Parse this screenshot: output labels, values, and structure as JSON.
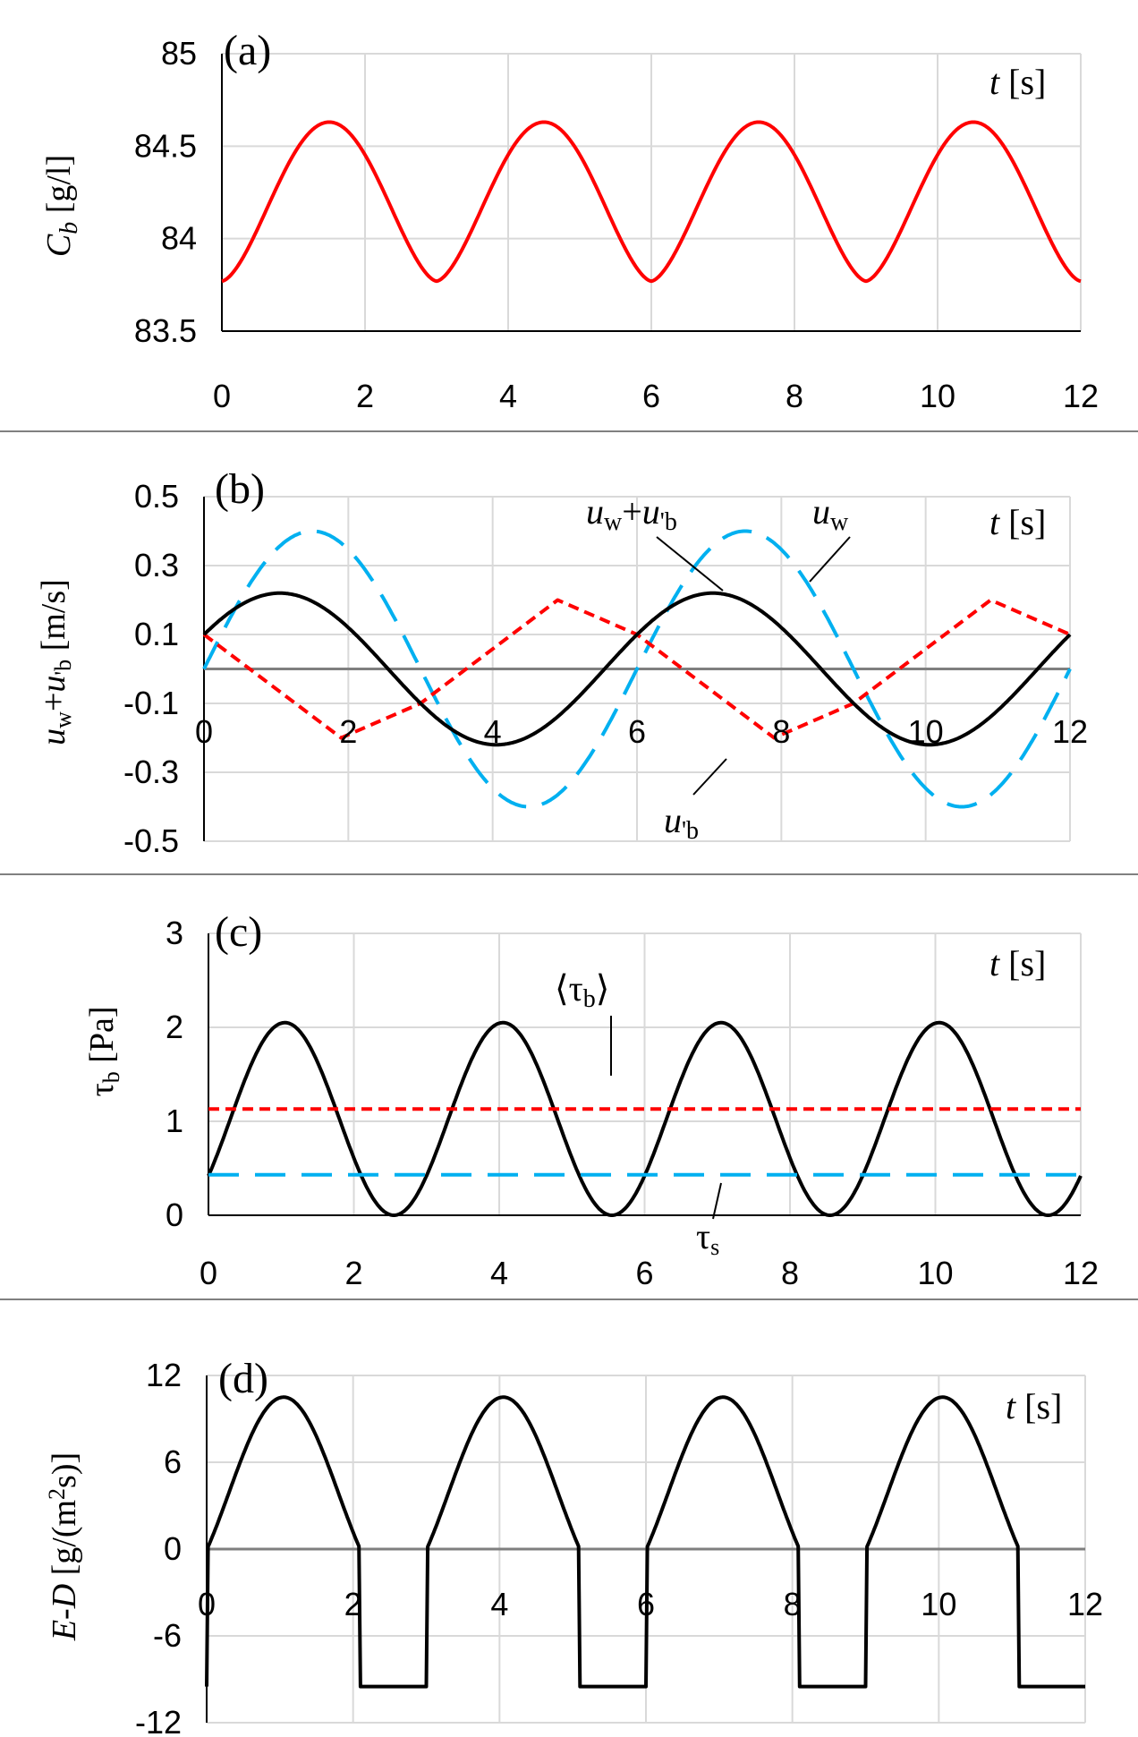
{
  "chart_data": [
    {
      "type": "line",
      "panel": "(a)",
      "t_label": "t [s]",
      "ylabel_parts": [
        "C",
        "b",
        " [g/l]"
      ],
      "x": [
        0,
        1.5,
        3,
        4.5,
        6,
        7.5,
        9,
        10.5,
        12
      ],
      "xlim": [
        0,
        12
      ],
      "xticks": [
        "0",
        "2",
        "4",
        "6",
        "8",
        "10",
        "12"
      ],
      "ylim": [
        83.5,
        85
      ],
      "yticks": [
        "83.5",
        "84",
        "84.5",
        "85"
      ],
      "series": [
        {
          "name": "C_b",
          "color": "#ff0000",
          "style": "solid",
          "values": [
            83.77,
            84.63,
            83.77,
            84.63,
            83.77,
            84.63,
            83.77,
            84.63,
            83.77
          ]
        }
      ]
    },
    {
      "type": "line",
      "panel": "(b)",
      "t_label": "t [s]",
      "ylabel": "uw+u'b [m/s]",
      "xlim": [
        0,
        12
      ],
      "xticks": [
        "0",
        "2",
        "4",
        "6",
        "8",
        "10",
        "12"
      ],
      "ylim": [
        -0.5,
        0.5
      ],
      "yticks": [
        "-0.5",
        "-0.3",
        "-0.1",
        "0.1",
        "0.3",
        "0.5"
      ],
      "series": [
        {
          "name": "uw",
          "color": "#00b0f0",
          "style": "dashed",
          "model": "0.4*sin(2*pi*t/6)",
          "amplitude": 0.4,
          "period": 6
        },
        {
          "name": "u'b",
          "color": "#ff0000",
          "style": "dotted",
          "x": [
            0,
            1.9,
            3,
            4.9,
            6,
            7.9,
            9,
            10.9,
            12
          ],
          "values": [
            0.1,
            -0.2,
            -0.1,
            0.2,
            0.1,
            -0.2,
            -0.1,
            0.2,
            0.1
          ]
        },
        {
          "name": "uw+u'b",
          "color": "#000000",
          "style": "solid",
          "model": "0.22*sin(2*pi*t/6+0.47)",
          "amplitude": 0.22,
          "period": 6
        }
      ],
      "annotations": [
        "uw+u'b",
        "uw",
        "u'b"
      ]
    },
    {
      "type": "line",
      "panel": "(c)",
      "t_label": "t [s]",
      "ylabel": "τb [Pa]",
      "xlim": [
        0,
        12
      ],
      "xticks": [
        "0",
        "2",
        "4",
        "6",
        "8",
        "10",
        "12"
      ],
      "ylim": [
        0,
        3
      ],
      "yticks": [
        "0",
        "1",
        "2",
        "3"
      ],
      "series": [
        {
          "name": "τb",
          "color": "#000000",
          "style": "solid",
          "model": "2.05*(0.22*sin(2*pi*t/6+0.47))^2/0.0484",
          "peak": 2.05,
          "period": 6
        },
        {
          "name": "⟨τb⟩",
          "color": "#ff0000",
          "style": "dotted",
          "constant": 1.13
        },
        {
          "name": "τs",
          "color": "#00b0f0",
          "style": "dashed",
          "constant": 0.43
        }
      ],
      "annotations": [
        "⟨τb⟩",
        "τs"
      ]
    },
    {
      "type": "line",
      "panel": "(d)",
      "t_label": "t [s]",
      "ylabel": "E-D [g/(m2s)]",
      "xlim": [
        0,
        12
      ],
      "xticks": [
        "0",
        "2",
        "4",
        "6",
        "8",
        "10",
        "12"
      ],
      "ylim": [
        -12,
        12
      ],
      "yticks": [
        "-12",
        "-6",
        "0",
        "6",
        "12"
      ],
      "series": [
        {
          "name": "E-D",
          "color": "#000000",
          "style": "solid",
          "model": "E = 10.5*(tau/2.05 - 0.43/2.05)/(1-0.43/2.05) above τs, else -9.5",
          "peak": 10.5,
          "floor": -9.5,
          "period": 6
        }
      ]
    }
  ],
  "text": {
    "a_panel": "(a)",
    "b_panel": "(b)",
    "c_panel": "(c)",
    "d_panel": "(d)",
    "t_italic": "t",
    "t_unit": " [s]",
    "a_ylabel_C": "C",
    "a_ylabel_sub": "b",
    "a_ylabel_unit": " [g/l]",
    "b_ylabel_u1": "u",
    "b_ylabel_w": "w",
    "b_ylabel_plus": "+",
    "b_ylabel_u2": "u",
    "b_ylabel_b": "'b",
    "b_ylabel_unit": " [m/s]",
    "b_ann_sum_u1": "u",
    "b_ann_sum_w": "w",
    "b_ann_sum_plus": "+",
    "b_ann_sum_u2": "u",
    "b_ann_sum_b": "'b",
    "b_ann_uw_u": "u",
    "b_ann_uw_w": "w",
    "b_ann_ub_u": "u",
    "b_ann_ub_b": "'b",
    "c_ylabel_tau": "τ",
    "c_ylabel_sub": "b",
    "c_ylabel_unit": " [Pa]",
    "c_ann_mean_open": "⟨τ",
    "c_ann_mean_sub": "b",
    "c_ann_mean_close": "⟩",
    "c_ann_ts_tau": "τ",
    "c_ann_ts_sub": "s",
    "d_ylabel_ED": "E-D",
    "d_ylabel_unit1": " [g/(m",
    "d_ylabel_sup": "2",
    "d_ylabel_unit2": "s)]"
  }
}
